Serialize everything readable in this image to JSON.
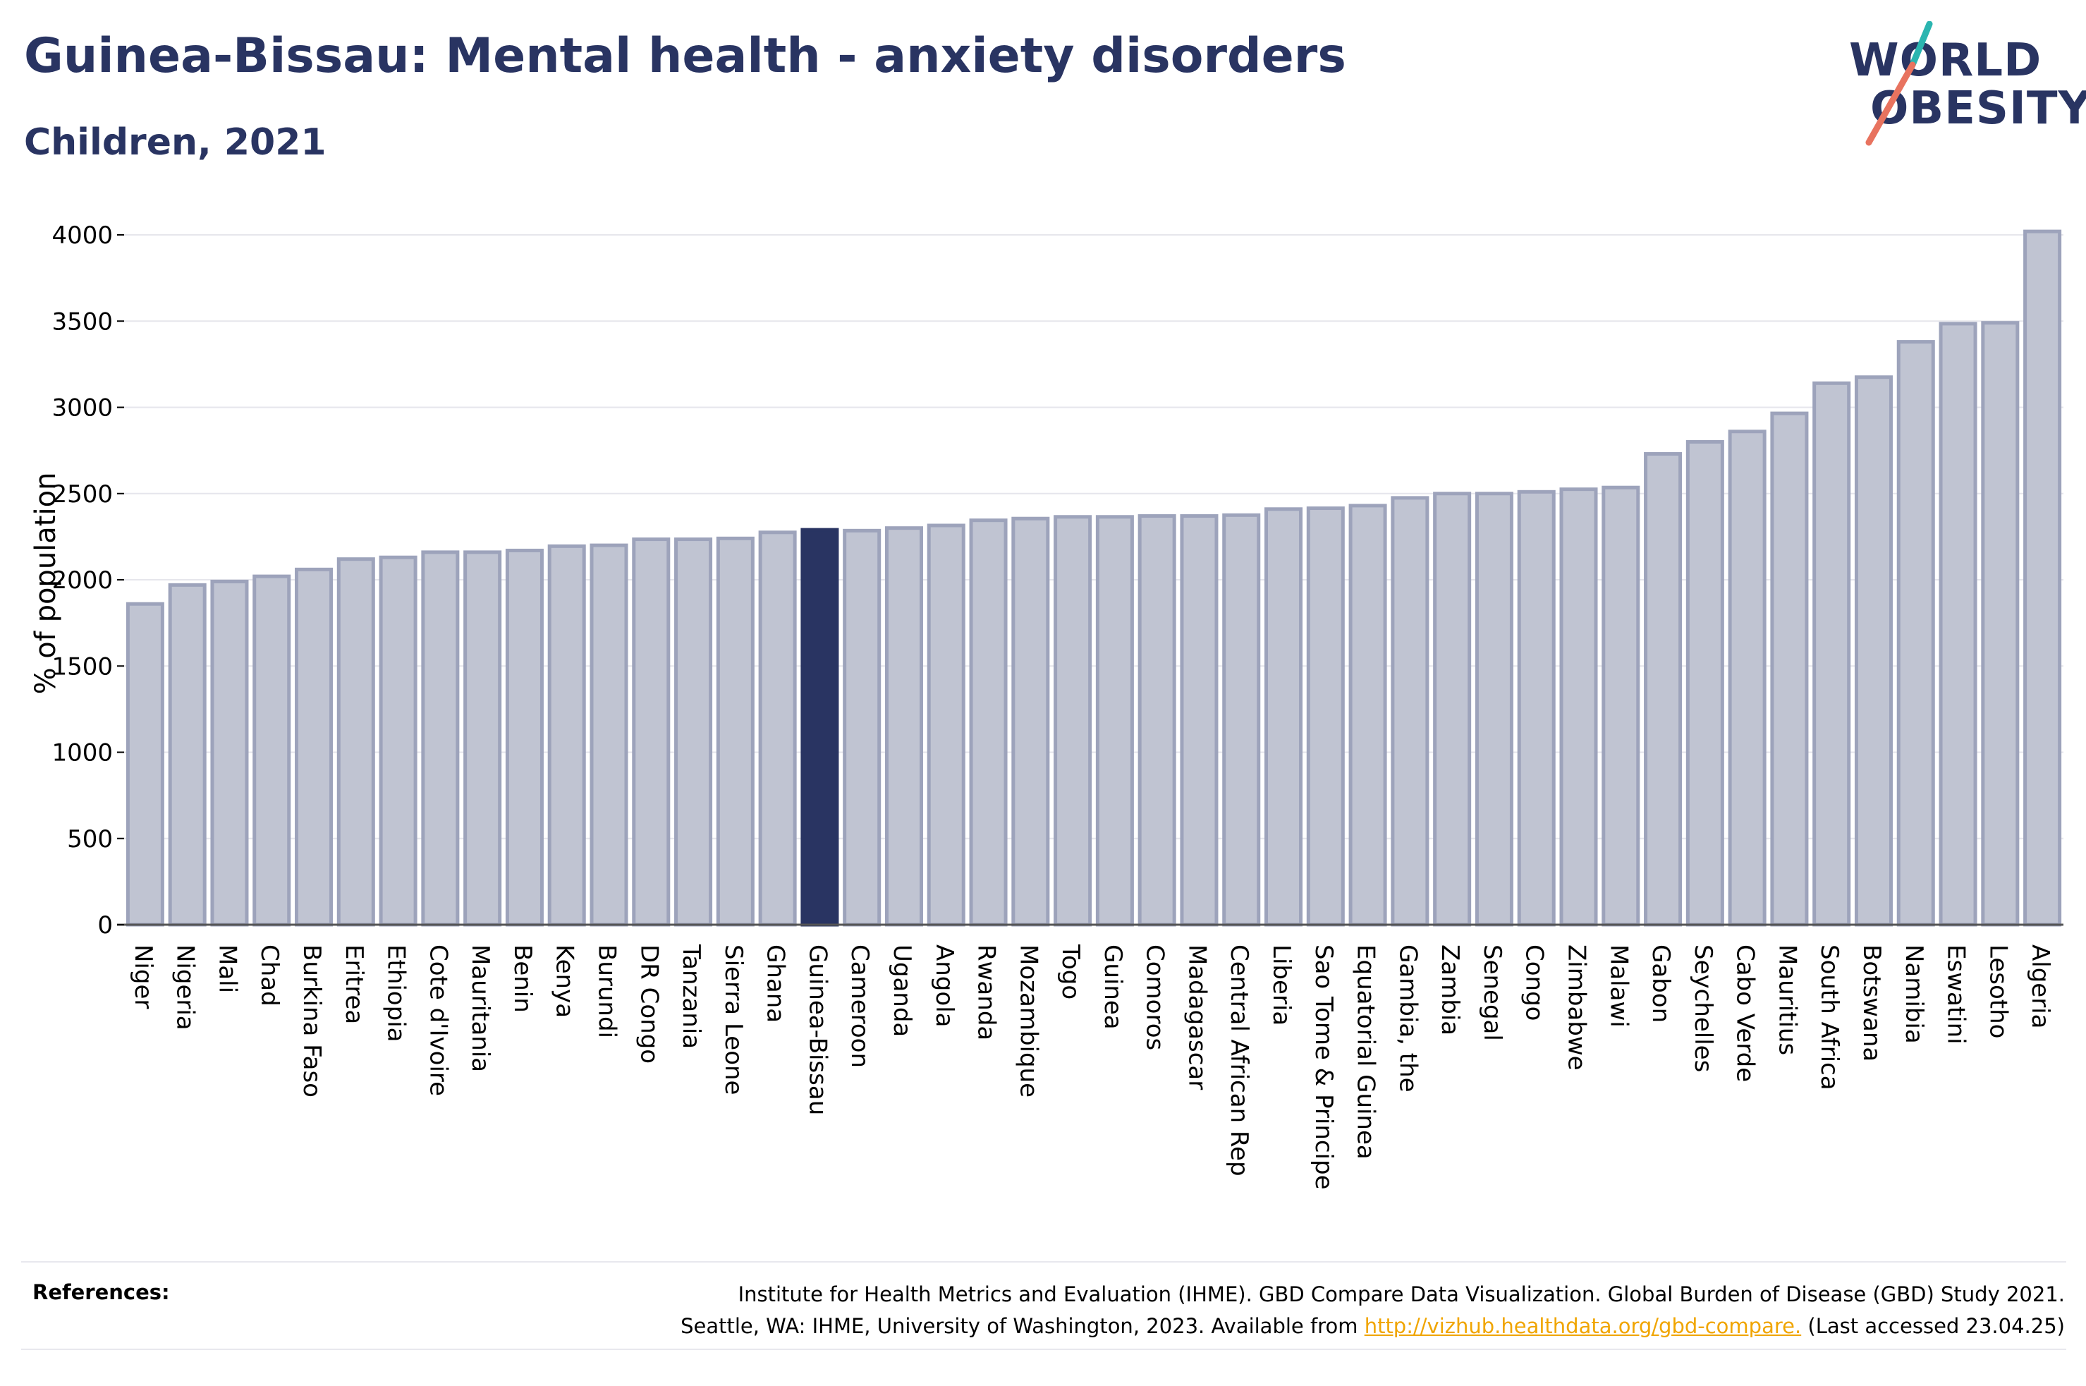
{
  "header": {
    "title": "Guinea-Bissau: Mental health - anxiety disorders",
    "subtitle": "Children, 2021"
  },
  "logo": {
    "line1": "WORLD",
    "line2": "OBESITY"
  },
  "colors": {
    "highlight": "#293462",
    "bar": "#c0c4d2",
    "bar_stroke": "#9da3bb",
    "logo_teal": "#2bb5b0",
    "logo_coral": "#e8735f",
    "link": "#f0a500"
  },
  "chart_data": {
    "type": "bar",
    "ylabel": "% of population",
    "ylim": [
      0,
      4000
    ],
    "yticks": [
      0,
      500,
      1000,
      1500,
      2000,
      2500,
      3000,
      3500,
      4000
    ],
    "grid": true,
    "highlight": "Guinea-Bissau",
    "categories": [
      "Niger",
      "Nigeria",
      "Mali",
      "Chad",
      "Burkina Faso",
      "Eritrea",
      "Ethiopia",
      "Cote d'Ivoire",
      "Mauritania",
      "Benin",
      "Kenya",
      "Burundi",
      "DR Congo",
      "Tanzania",
      "Sierra Leone",
      "Ghana",
      "Guinea-Bissau",
      "Cameroon",
      "Uganda",
      "Angola",
      "Rwanda",
      "Mozambique",
      "Togo",
      "Guinea",
      "Comoros",
      "Madagascar",
      "Central African Rep",
      "Liberia",
      "Sao Tome & Principe",
      "Equatorial Guinea",
      "Gambia, the",
      "Zambia",
      "Senegal",
      "Congo",
      "Zimbabwe",
      "Malawi",
      "Gabon",
      "Seychelles",
      "Cabo Verde",
      "Mauritius",
      "South Africa",
      "Botswana",
      "Namibia",
      "Eswatini",
      "Lesotho",
      "Algeria"
    ],
    "values": [
      1860,
      1970,
      1990,
      2020,
      2060,
      2120,
      2130,
      2160,
      2160,
      2170,
      2195,
      2200,
      2235,
      2235,
      2240,
      2275,
      2290,
      2285,
      2300,
      2315,
      2345,
      2355,
      2365,
      2365,
      2370,
      2370,
      2375,
      2410,
      2415,
      2430,
      2475,
      2500,
      2500,
      2510,
      2525,
      2535,
      2730,
      2800,
      2860,
      2965,
      3140,
      3175,
      3380,
      3485,
      3490,
      4020
    ]
  },
  "references": {
    "label": "References:",
    "line1": "Institute for Health Metrics and Evaluation (IHME). GBD Compare Data Visualization. Global Burden of Disease (GBD) Study 2021.",
    "line2_pre": "Seattle, WA: IHME, University of Washington, 2023. Available from ",
    "link": "http://vizhub.healthdata.org/gbd-compare.",
    "line2_post": " (Last accessed 23.04.25)"
  }
}
